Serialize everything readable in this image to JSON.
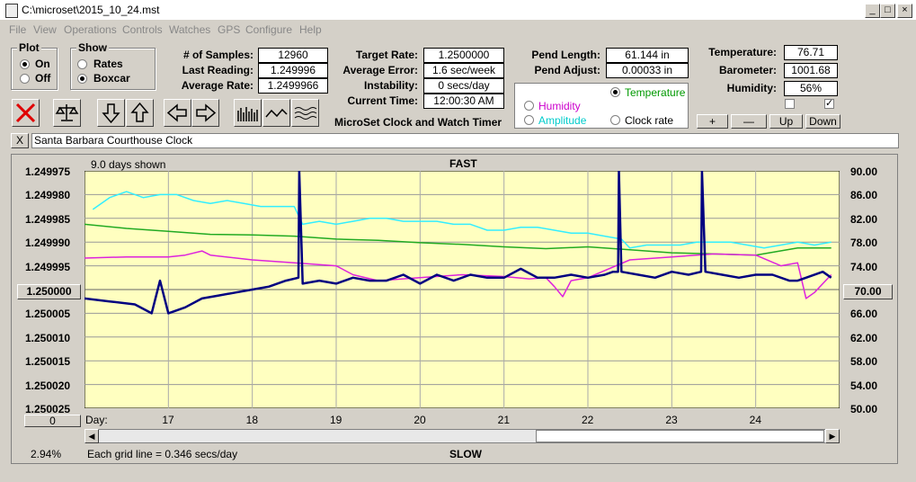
{
  "window": {
    "title": "C:\\microset\\2015_10_24.mst",
    "min": "_",
    "max": "□",
    "close": "×"
  },
  "menu": [
    "File",
    "View",
    "Operations",
    "Controls",
    "Watches",
    "GPS",
    "Configure",
    "Help"
  ],
  "plot_group": {
    "title": "Plot",
    "on": "On",
    "off": "Off",
    "selected": "On"
  },
  "show_group": {
    "title": "Show",
    "rates": "Rates",
    "boxcar": "Boxcar",
    "selected": "Boxcar"
  },
  "stats": {
    "samples_label": "# of Samples:",
    "samples": "12960",
    "last_label": "Last Reading:",
    "last": "1.249996",
    "avg_label": "Average Rate:",
    "avg": "1.2499966",
    "target_label": "Target Rate:",
    "target": "1.2500000",
    "avgerr_label": "Average Error:",
    "avgerr": "1.6 sec/week",
    "instab_label": "Instability:",
    "instab": "0 secs/day",
    "time_label": "Current Time:",
    "time": "12:00:30 AM",
    "pendlen_label": "Pend Length:",
    "pendlen": "61.144 in",
    "pendadj_label": "Pend Adjust:",
    "pendadj": "0.00033 in",
    "temp_label": "Temperature:",
    "temp": "76.71",
    "baro_label": "Barometer:",
    "baro": "1001.68",
    "hum_label": "Humidity:",
    "hum": "56%"
  },
  "app_caption": "MicroSet Clock and Watch Timer",
  "overlay": {
    "temperature": "Temperature",
    "humidity": "Humidity",
    "amplitude": "Amplitude",
    "clock_rate": "Clock rate",
    "selected": "Temperature",
    "colors": {
      "temperature": "#009900",
      "humidity": "#cc00cc",
      "amplitude": "#00cccc",
      "clock_rate": "#000000"
    }
  },
  "scale_buttons": {
    "plus": "+",
    "minus": "—",
    "up": "Up",
    "down": "Down"
  },
  "checks": {
    "left": false,
    "right": true
  },
  "clock": {
    "close": "X",
    "name": "Santa Barbara Courthouse Clock"
  },
  "chart": {
    "days_shown": "9.0 days shown",
    "fast": "FAST",
    "slow": "SLOW",
    "center_rate": "1.250000",
    "center_temp": "70.00",
    "zero_btn": "0",
    "day_label": "Day:",
    "grid_note": "Each grid line = 0.346 secs/day",
    "percent": "2.94%"
  },
  "chart_data": {
    "type": "line",
    "x_label": "Day",
    "x_ticks": [
      "17",
      "18",
      "19",
      "20",
      "21",
      "22",
      "23",
      "24"
    ],
    "y_left_ticks": [
      "1.249975",
      "1.249980",
      "1.249985",
      "1.249990",
      "1.249995",
      "",
      "1.250005",
      "1.250010",
      "1.250015",
      "1.250020",
      "1.250025"
    ],
    "y_right_ticks": [
      "90.00",
      "86.00",
      "82.00",
      "78.00",
      "74.00",
      "",
      "66.00",
      "62.00",
      "58.00",
      "54.00",
      "50.00"
    ],
    "ylim_left": [
      1.250025,
      1.249975
    ],
    "ylim_right": [
      50,
      90
    ],
    "grid": true,
    "series": [
      {
        "name": "Amplitude",
        "color": "#33eeff",
        "width": 1.5,
        "x": [
          16.1,
          16.3,
          16.5,
          16.7,
          16.9,
          17.1,
          17.3,
          17.5,
          17.7,
          17.9,
          18.1,
          18.3,
          18.5,
          18.6,
          18.8,
          19.0,
          19.2,
          19.4,
          19.6,
          19.8,
          20.0,
          20.2,
          20.4,
          20.6,
          20.8,
          21.0,
          21.2,
          21.4,
          21.6,
          21.8,
          22.0,
          22.2,
          22.4,
          22.5,
          22.7,
          22.9,
          23.1,
          23.3,
          23.5,
          23.7,
          23.9,
          24.1,
          24.3,
          24.5,
          24.7,
          24.9
        ],
        "y": [
          83.5,
          85.5,
          86.5,
          85.5,
          86.0,
          86.0,
          85.0,
          84.5,
          85.0,
          84.5,
          84.0,
          84.0,
          84.0,
          81.0,
          81.5,
          81.0,
          81.5,
          82.0,
          82.0,
          81.5,
          81.5,
          81.5,
          81.0,
          81.0,
          80.0,
          80.0,
          80.5,
          80.5,
          80.0,
          79.5,
          79.5,
          79.0,
          78.5,
          77.0,
          77.5,
          77.5,
          77.5,
          78.0,
          78.0,
          78.0,
          77.5,
          77.0,
          77.5,
          78.0,
          77.5,
          78.0
        ]
      },
      {
        "name": "Temperature",
        "color": "#22aa22",
        "width": 1.5,
        "x": [
          16.0,
          16.5,
          17.0,
          17.5,
          18.0,
          18.5,
          19.0,
          19.5,
          20.0,
          20.5,
          21.0,
          21.5,
          22.0,
          22.5,
          23.0,
          23.5,
          24.0,
          24.5,
          24.9
        ],
        "y": [
          81.0,
          80.3,
          79.8,
          79.3,
          79.2,
          79.0,
          78.5,
          78.3,
          77.9,
          77.6,
          77.2,
          76.9,
          77.2,
          76.7,
          76.2,
          76.0,
          75.8,
          77.0,
          77.0
        ]
      },
      {
        "name": "Humidity",
        "color": "#dd22dd",
        "width": 1.5,
        "x": [
          16.0,
          16.5,
          17.0,
          17.2,
          17.4,
          17.5,
          18.0,
          18.5,
          19.0,
          19.2,
          19.5,
          20.0,
          20.5,
          21.0,
          21.3,
          21.5,
          21.6,
          21.7,
          21.8,
          22.0,
          22.5,
          23.0,
          23.5,
          24.0,
          24.3,
          24.5,
          24.6,
          24.7,
          24.9
        ],
        "y": [
          75.3,
          75.5,
          75.5,
          75.8,
          76.5,
          75.8,
          75.0,
          74.5,
          74.0,
          72.5,
          71.5,
          72.0,
          72.5,
          72.2,
          71.8,
          72.0,
          70.5,
          68.8,
          71.5,
          72.0,
          75.0,
          75.5,
          76.0,
          75.8,
          74.0,
          74.5,
          68.5,
          69.5,
          72.5
        ]
      },
      {
        "name": "Clock rate",
        "color": "#000080",
        "width": 2.5,
        "x": [
          16.0,
          16.3,
          16.6,
          16.8,
          16.9,
          17.0,
          17.2,
          17.4,
          17.6,
          17.8,
          18.0,
          18.2,
          18.4,
          18.55,
          18.56,
          18.6,
          18.8,
          19.0,
          19.2,
          19.4,
          19.6,
          19.8,
          20.0,
          20.2,
          20.4,
          20.6,
          20.8,
          21.0,
          21.2,
          21.4,
          21.6,
          21.8,
          22.0,
          22.2,
          22.3,
          22.36,
          22.37,
          22.4,
          22.6,
          22.8,
          23.0,
          23.2,
          23.35,
          23.36,
          23.4,
          23.6,
          23.8,
          24.0,
          24.2,
          24.4,
          24.5,
          24.6,
          24.8,
          24.9
        ],
        "y": [
          68.5,
          68.0,
          67.5,
          66.0,
          71.5,
          66.0,
          67.0,
          68.5,
          69.0,
          69.5,
          70.0,
          70.5,
          71.5,
          72.0,
          90.0,
          71.0,
          71.5,
          71.0,
          72.0,
          71.5,
          71.5,
          72.5,
          71.0,
          72.5,
          71.5,
          72.5,
          72.0,
          72.0,
          73.5,
          72.0,
          72.0,
          72.5,
          72.0,
          72.5,
          73.0,
          73.0,
          90.0,
          73.0,
          72.5,
          72.0,
          73.0,
          72.5,
          73.0,
          90.0,
          73.0,
          72.5,
          72.0,
          72.5,
          72.5,
          71.5,
          71.5,
          72.0,
          73.0,
          72.0
        ]
      }
    ]
  }
}
